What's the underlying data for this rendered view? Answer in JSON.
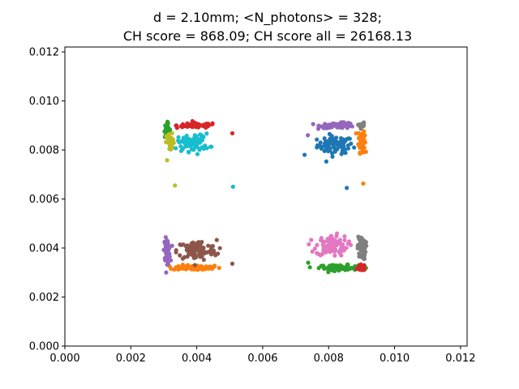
{
  "chart_data": {
    "type": "scatter",
    "title": [
      "d = 2.10mm; <N_photons> = 328;",
      "CH score = 868.09; CH score all = 26168.13"
    ],
    "xlabel": "",
    "ylabel": "",
    "xlim": [
      0.0,
      0.0122
    ],
    "ylim": [
      0.0,
      0.0122
    ],
    "x_ticks": [
      0.0,
      0.002,
      0.004,
      0.006,
      0.008,
      0.01,
      0.012
    ],
    "y_ticks": [
      0.0,
      0.002,
      0.004,
      0.006,
      0.008,
      0.01,
      0.012
    ],
    "x_tick_labels": [
      "0.000",
      "0.002",
      "0.004",
      "0.006",
      "0.008",
      "0.010",
      "0.012"
    ],
    "y_tick_labels": [
      "0.000",
      "0.002",
      "0.004",
      "0.006",
      "0.008",
      "0.010",
      "0.012"
    ],
    "grid": false,
    "legend": "none",
    "clusters": [
      {
        "color": "#1f77b4",
        "center": [
          0.0082,
          0.0082
        ],
        "spread": [
          0.00045,
          0.0003
        ],
        "count": 80
      },
      {
        "color": "#ff7f0e",
        "center": [
          0.004,
          0.0032
        ],
        "spread": [
          0.0006,
          9e-05
        ],
        "count": 80
      },
      {
        "color": "#ff7f0e",
        "center": [
          0.009,
          0.0084
        ],
        "spread": [
          8e-05,
          0.0004
        ],
        "count": 60
      },
      {
        "color": "#2ca02c",
        "center": [
          0.0083,
          0.0032
        ],
        "spread": [
          0.0005,
          9e-05
        ],
        "count": 80
      },
      {
        "color": "#2ca02c",
        "center": [
          0.0031,
          0.0088
        ],
        "spread": [
          8e-05,
          0.00025
        ],
        "count": 25
      },
      {
        "color": "#d62728",
        "center": [
          0.004,
          0.009
        ],
        "spread": [
          0.0005,
          9e-05
        ],
        "count": 70
      },
      {
        "color": "#d62728",
        "center": [
          0.009,
          0.0032
        ],
        "spread": [
          9e-05,
          0.0001
        ],
        "count": 35
      },
      {
        "color": "#9467bd",
        "center": [
          0.0083,
          0.009
        ],
        "spread": [
          0.00045,
          9e-05
        ],
        "count": 75
      },
      {
        "color": "#9467bd",
        "center": [
          0.0031,
          0.0039
        ],
        "spread": [
          8e-05,
          0.0004
        ],
        "count": 60
      },
      {
        "color": "#8c564b",
        "center": [
          0.004,
          0.0039
        ],
        "spread": [
          0.0005,
          0.00035
        ],
        "count": 100
      },
      {
        "color": "#e377c2",
        "center": [
          0.0081,
          0.0041
        ],
        "spread": [
          0.0004,
          0.00035
        ],
        "count": 100
      },
      {
        "color": "#7f7f7f",
        "center": [
          0.009,
          0.004
        ],
        "spread": [
          0.0001,
          0.0004
        ],
        "count": 60
      },
      {
        "color": "#7f7f7f",
        "center": [
          0.009,
          0.009
        ],
        "spread": [
          8e-05,
          0.0001
        ],
        "count": 15
      },
      {
        "color": "#bcbd22",
        "center": [
          0.0032,
          0.0083
        ],
        "spread": [
          0.0001,
          0.0003
        ],
        "count": 40
      },
      {
        "color": "#17becf",
        "center": [
          0.0039,
          0.0083
        ],
        "spread": [
          0.0004,
          0.0003
        ],
        "count": 80
      }
    ],
    "outliers": [
      {
        "color": "#bcbd22",
        "x": 0.00334,
        "y": 0.00655
      },
      {
        "color": "#17becf",
        "x": 0.0051,
        "y": 0.0065
      },
      {
        "color": "#1f77b4",
        "x": 0.00855,
        "y": 0.00645
      },
      {
        "color": "#ff7f0e",
        "x": 0.00905,
        "y": 0.00663
      },
      {
        "color": "#d62728",
        "x": 0.00508,
        "y": 0.00868
      },
      {
        "color": "#1f77b4",
        "x": 0.00727,
        "y": 0.0078
      },
      {
        "color": "#9467bd",
        "x": 0.00737,
        "y": 0.0086
      },
      {
        "color": "#1f77b4",
        "x": 0.00793,
        "y": 0.00753
      },
      {
        "color": "#2ca02c",
        "x": 0.00738,
        "y": 0.0034
      },
      {
        "color": "#8c564b",
        "x": 0.00508,
        "y": 0.00336
      },
      {
        "color": "#bcbd22",
        "x": 0.0031,
        "y": 0.00758
      }
    ]
  }
}
